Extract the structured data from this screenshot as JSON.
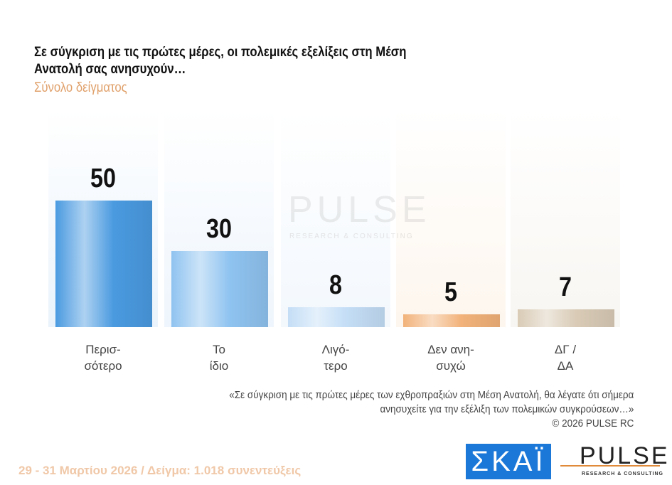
{
  "chart_data": {
    "type": "bar",
    "title": "Σε σύγκριση με τις πρώτες μέρες, οι πολεμικές εξελίξεις στη Μέση Ανατολή σας ανησυχούν…",
    "subtitle": "Σύνολο δείγματος",
    "categories": [
      "Περισ-\nσότερο",
      "Το\nίδιο",
      "Λιγό-\nτερο",
      "Δεν ανη-\nσυχώ",
      "ΔΓ /\nΔΑ"
    ],
    "values": [
      50,
      30,
      8,
      5,
      7
    ],
    "colors": [
      "#4a9ae0",
      "#8fc3f0",
      "#c4def6",
      "#f2b27a",
      "#d9cbb6"
    ],
    "bg_colors": [
      "#eaf3fb",
      "#eef5fc",
      "#f3f8fd",
      "#fdf6ee",
      "#f8f6f2"
    ],
    "ylim": [
      0,
      86
    ]
  },
  "watermark": "PULSE",
  "watermark_sub": "RESEARCH & CONSULTING",
  "note_line1": "«Σε σύγκριση με τις πρώτες μέρες των εχθροπραξιών στη Μέση Ανατολή, θα λέγατε ότι σήμερα",
  "note_line2": "ανησυχείτε για την εξέλιξη των πολεμικών συγκρούσεων…»",
  "copyright": "©  2026  PULSE RC",
  "footer": "29 - 31  Μαρτίου 2026  /  Δείγμα:  1.018 συνεντεύξεις",
  "logo_skai": "ΣΚΑΪ",
  "logo_pulse": "PULSE",
  "logo_pulse_sub": "RESEARCH & CONSULTING"
}
